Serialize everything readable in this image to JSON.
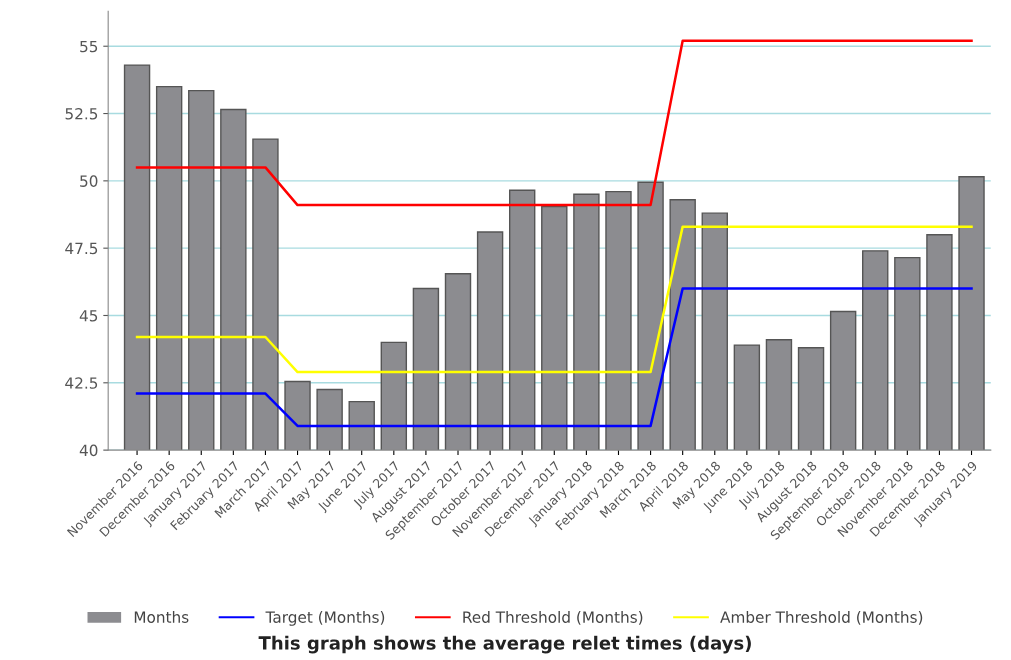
{
  "chart_data": {
    "type": "bar",
    "title": "This graph shows the average relet times (days)",
    "categories": [
      "November 2016",
      "December 2016",
      "January 2017",
      "February 2017",
      "March 2017",
      "April 2017",
      "May 2017",
      "June 2017",
      "July 2017",
      "August 2017",
      "September 2017",
      "October 2017",
      "November 2017",
      "December 2017",
      "January 2018",
      "February 2018",
      "March 2018",
      "April 2018",
      "May 2018",
      "June 2018",
      "July 2018",
      "August 2018",
      "September 2018",
      "October 2018",
      "November 2018",
      "December 2018",
      "January 2019"
    ],
    "series": [
      {
        "name": "Months",
        "color": "#8c8c90",
        "values": [
          54.3,
          53.5,
          53.35,
          52.65,
          51.55,
          42.55,
          42.25,
          41.8,
          44.0,
          46.0,
          46.55,
          48.1,
          49.65,
          49.05,
          49.5,
          49.6,
          49.95,
          49.3,
          48.8,
          43.9,
          44.1,
          43.8,
          45.15,
          47.4,
          47.15,
          48.0,
          50.15
        ]
      },
      {
        "name": "Target (Months)",
        "type": "line",
        "color": "#0000ff",
        "values": [
          42.1,
          42.1,
          42.1,
          42.1,
          42.1,
          40.9,
          40.9,
          40.9,
          40.9,
          40.9,
          40.9,
          40.9,
          40.9,
          40.9,
          40.9,
          40.9,
          40.9,
          46.0,
          46.0,
          46.0,
          46.0,
          46.0,
          46.0,
          46.0,
          46.0,
          46.0,
          46.0
        ]
      },
      {
        "name": "Red Threshold (Months)",
        "type": "line",
        "color": "#ff0000",
        "values": [
          50.5,
          50.5,
          50.5,
          50.5,
          50.5,
          49.1,
          49.1,
          49.1,
          49.1,
          49.1,
          49.1,
          49.1,
          49.1,
          49.1,
          49.1,
          49.1,
          49.1,
          55.2,
          55.2,
          55.2,
          55.2,
          55.2,
          55.2,
          55.2,
          55.2,
          55.2,
          55.2
        ]
      },
      {
        "name": "Amber Threshold (Months)",
        "type": "line",
        "color": "#ffff00",
        "values": [
          44.2,
          44.2,
          44.2,
          44.2,
          44.2,
          42.9,
          42.9,
          42.9,
          42.9,
          42.9,
          42.9,
          42.9,
          42.9,
          42.9,
          42.9,
          42.9,
          42.9,
          48.3,
          48.3,
          48.3,
          48.3,
          48.3,
          48.3,
          48.3,
          48.3,
          48.3,
          48.3
        ]
      }
    ],
    "ylim": [
      40,
      56.3
    ],
    "yticks": [
      40,
      {
        "value": 42.5,
        "label": "42.5"
      },
      45,
      {
        "value": 47.5,
        "label": "47.5"
      },
      50,
      {
        "value": 52.5,
        "label": "52.5"
      },
      55
    ],
    "grid": "y",
    "legend": "bottom",
    "marker": "none",
    "line_style": "solid"
  }
}
